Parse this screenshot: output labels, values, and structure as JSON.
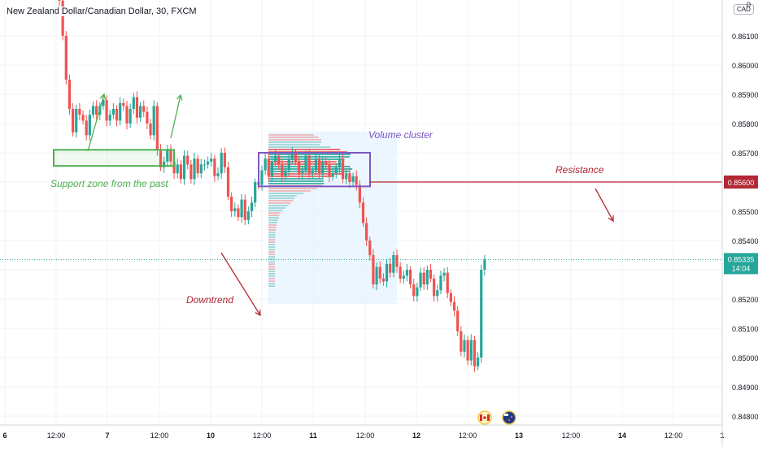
{
  "header": {
    "title": "New Zealand Dollar/Canadian Dollar, 30, FXCM",
    "currency_badge": "CAD",
    "corner_value": "0"
  },
  "annotations": {
    "support": "Support zone from the past",
    "volume": "Volume cluster",
    "resistance": "Resistance",
    "downtrend": "Downtrend"
  },
  "price_labels": {
    "resistance_price": "0.85600",
    "last_price": "0.85335",
    "countdown": "14:04"
  },
  "colors": {
    "up": "#26a69a",
    "down": "#ef5350",
    "support": "#4caf50",
    "volume_box": "#7e57c2",
    "resistance": "#b22833",
    "volume_area": "#e3f2fd",
    "last_price": "#26a69a"
  },
  "event_icons": [
    "canada-flag-icon",
    "new-zealand-flag-icon"
  ],
  "chart_data": {
    "type": "candlestick",
    "title": "New Zealand Dollar/Canadian Dollar, 30, FXCM",
    "ylim": [
      0.8475,
      0.8628
    ],
    "y_ticks": [
      "0.86100",
      "0.86000",
      "0.85900",
      "0.85800",
      "0.85700",
      "0.85600",
      "0.85500",
      "0.85400",
      "0.85300",
      "0.85200",
      "0.85100",
      "0.85000",
      "0.84900",
      "0.84800"
    ],
    "x_ticks": [
      "6",
      "12:00",
      "7",
      "12:00",
      "10",
      "12:00",
      "11",
      "12:00",
      "12",
      "12:00",
      "13",
      "12:00",
      "14",
      "12:00",
      "1"
    ],
    "resistance_level": 0.856,
    "last_price": 0.85335,
    "support_zone": [
      0.85655,
      0.8571
    ],
    "volume_cluster_zone": [
      0.85585,
      0.857
    ],
    "path": [
      0.8625,
      0.8622,
      0.861,
      0.8595,
      0.8585,
      0.8577,
      0.8585,
      0.8583,
      0.8581,
      0.8576,
      0.8583,
      0.8586,
      0.8583,
      0.8586,
      0.8588,
      0.8581,
      0.8583,
      0.8585,
      0.8581,
      0.8587,
      0.8586,
      0.858,
      0.8585,
      0.8589,
      0.8582,
      0.8586,
      0.8584,
      0.858,
      0.8576,
      0.8586,
      0.8571,
      0.8565,
      0.8567,
      0.8571,
      0.8567,
      0.8563,
      0.8566,
      0.8561,
      0.8569,
      0.8566,
      0.8561,
      0.8568,
      0.8563,
      0.8566,
      0.8566,
      0.8567,
      0.8568,
      0.8562,
      0.8563,
      0.857,
      0.8565,
      0.8555,
      0.855,
      0.8551,
      0.8548,
      0.8554,
      0.8547,
      0.855,
      0.8553,
      0.856,
      0.8559,
      0.8564,
      0.8568,
      0.8562,
      0.8567,
      0.8569,
      0.8566,
      0.8562,
      0.8564,
      0.8568,
      0.857,
      0.8567,
      0.8563,
      0.8564,
      0.8569,
      0.8563,
      0.8564,
      0.8568,
      0.8563,
      0.8567,
      0.8566,
      0.8562,
      0.8563,
      0.8565,
      0.8568,
      0.8561,
      0.8563,
      0.856,
      0.8562,
      0.8559,
      0.8553,
      0.8546,
      0.854,
      0.8535,
      0.8525,
      0.8531,
      0.8527,
      0.8526,
      0.8532,
      0.8529,
      0.8535,
      0.8531,
      0.8527,
      0.8528,
      0.853,
      0.8525,
      0.8521,
      0.8524,
      0.8529,
      0.8525,
      0.853,
      0.8527,
      0.8521,
      0.8523,
      0.8528,
      0.8529,
      0.8522,
      0.8519,
      0.8516,
      0.8509,
      0.8502,
      0.8506,
      0.8499,
      0.8506,
      0.8497,
      0.85,
      0.853,
      0.85335
    ]
  }
}
